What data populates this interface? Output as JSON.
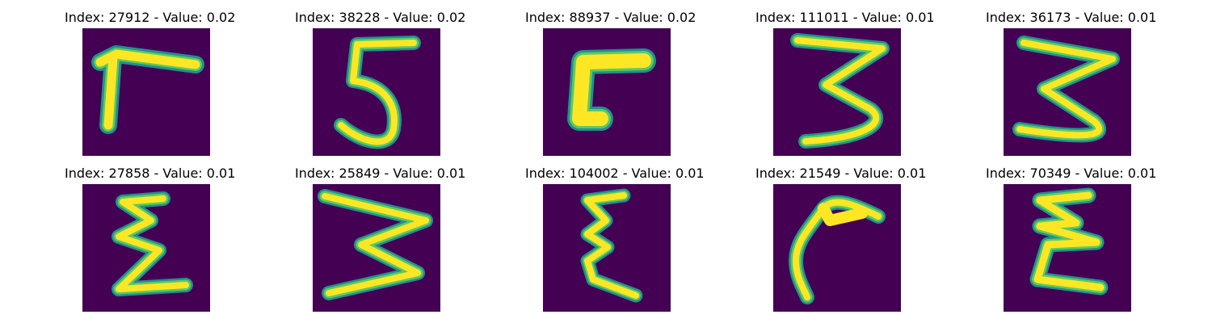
{
  "colors": {
    "background": "#440154",
    "stroke_outer": "#21918c",
    "stroke_mid": "#5ec962",
    "stroke_inner": "#fde725"
  },
  "panels": [
    {
      "title": "Index: 27912 - Value: 0.02",
      "glyph": "seven-like-stroke"
    },
    {
      "title": "Index: 38228 - Value: 0.02",
      "glyph": "digit-five"
    },
    {
      "title": "Index: 88937 - Value: 0.02",
      "glyph": "bracket-c-shape"
    },
    {
      "title": "Index: 111011 - Value: 0.01",
      "glyph": "digit-three"
    },
    {
      "title": "Index: 36173 - Value: 0.01",
      "glyph": "digit-three"
    },
    {
      "title": "Index: 27858 - Value: 0.01",
      "glyph": "sigma-like-stroke"
    },
    {
      "title": "Index: 25849 - Value: 0.01",
      "glyph": "wide-three-stroke"
    },
    {
      "title": "Index: 104002 - Value: 0.01",
      "glyph": "epsilon-like-stroke"
    },
    {
      "title": "Index: 21549 - Value: 0.01",
      "glyph": "curved-hook-stroke"
    },
    {
      "title": "Index: 70349 - Value: 0.01",
      "glyph": "sigma-like-stroke"
    }
  ]
}
